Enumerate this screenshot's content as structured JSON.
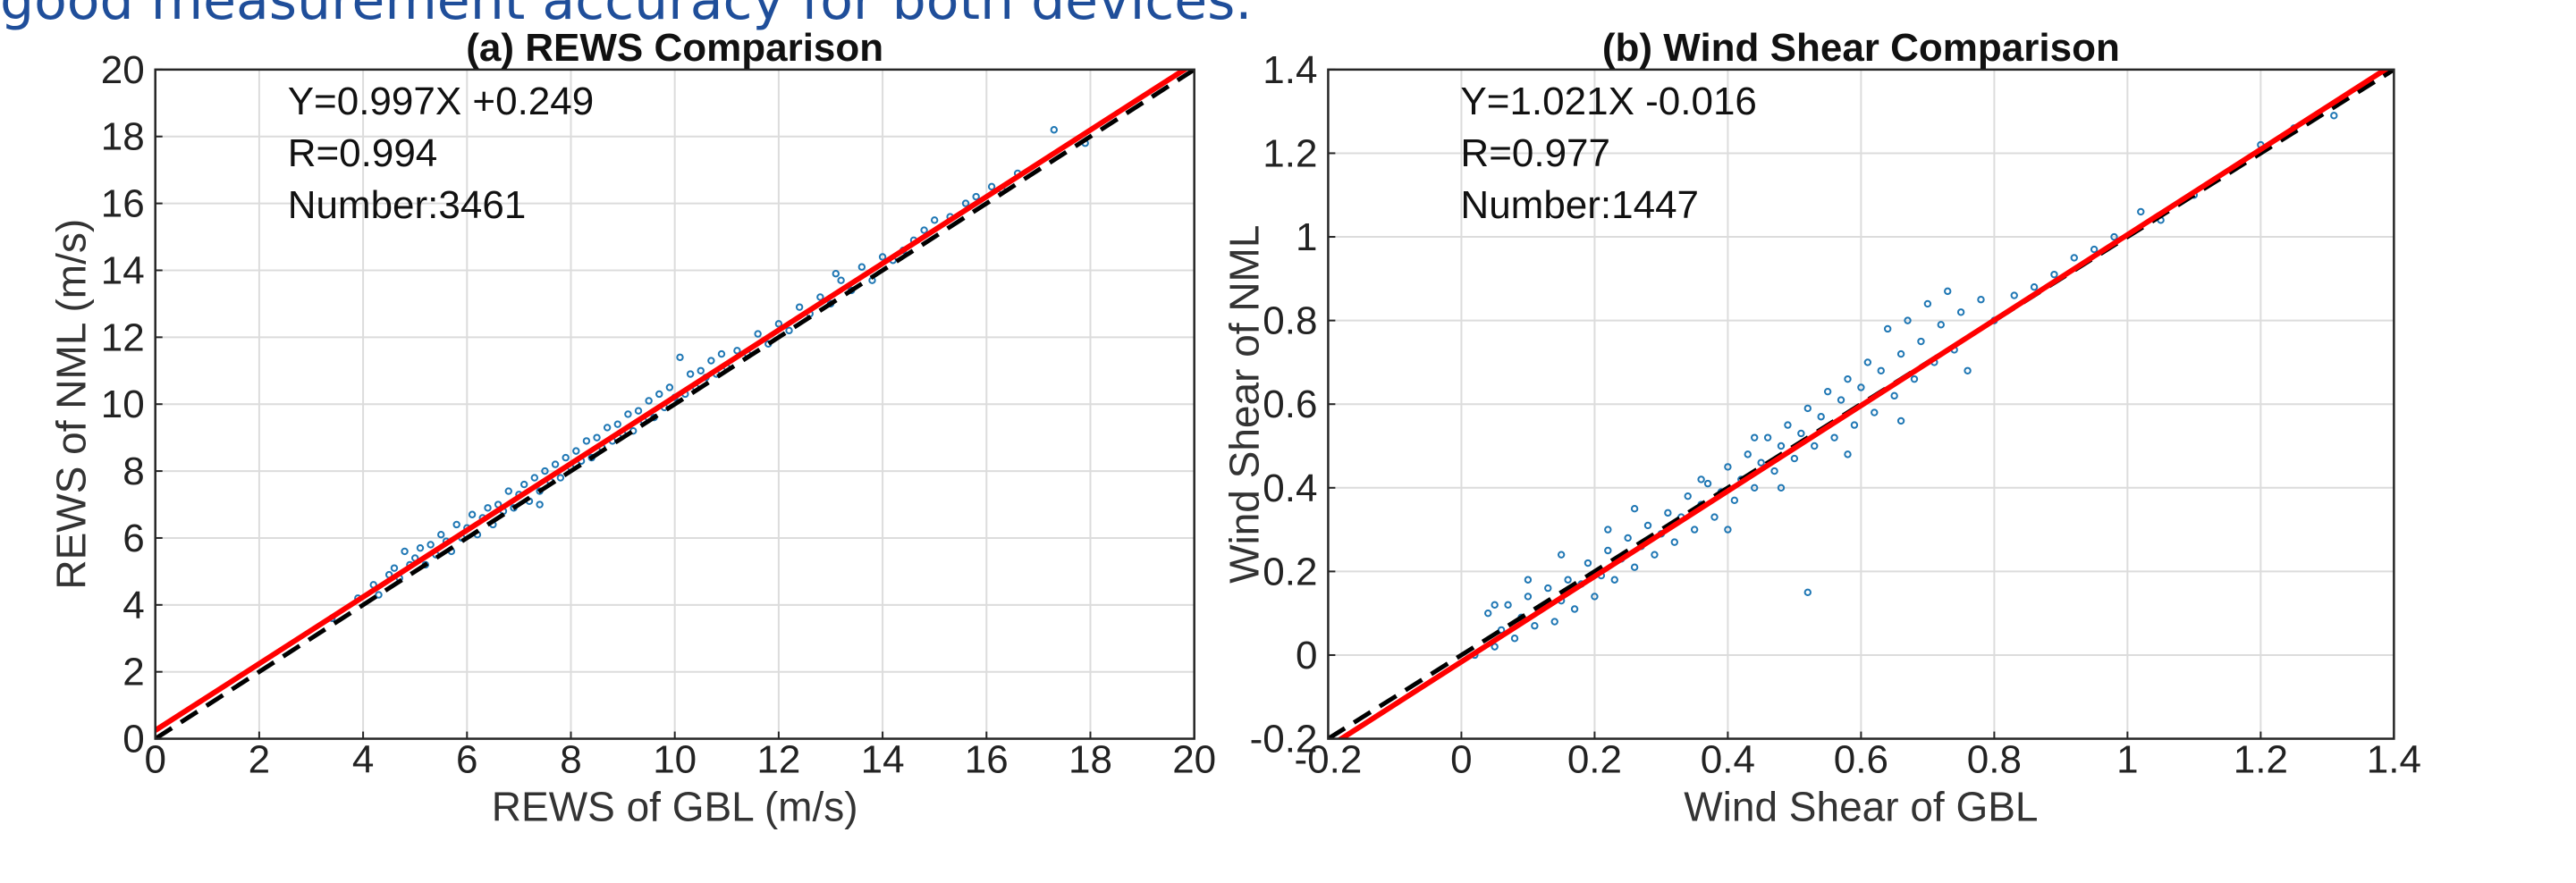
{
  "banner_text": "good measurement accuracy for both devices.",
  "colors": {
    "points": "#1f77b4",
    "fit": "#ff0000",
    "reference": "#000000",
    "banner": "#1f4e9a"
  },
  "chart_data": [
    {
      "type": "scatter",
      "title": "(a) REWS Comparison",
      "xlabel": "REWS of GBL (m/s)",
      "ylabel": "REWS of NML (m/s)",
      "xlim": [
        0,
        20
      ],
      "ylim": [
        0,
        20
      ],
      "xticks": [
        0,
        2,
        4,
        6,
        8,
        10,
        12,
        14,
        16,
        18,
        20
      ],
      "yticks": [
        0,
        2,
        4,
        6,
        8,
        10,
        12,
        14,
        16,
        18,
        20
      ],
      "xtick_labels": [
        "0",
        "2",
        "4",
        "6",
        "8",
        "10",
        "12",
        "14",
        "16",
        "18",
        "20"
      ],
      "ytick_labels": [
        "0",
        "2",
        "4",
        "6",
        "8",
        "10",
        "12",
        "14",
        "16",
        "18",
        "20"
      ],
      "grid": true,
      "annotations": [
        "Y=0.997X +0.249",
        "R=0.994",
        "Number:3461"
      ],
      "fit_line": {
        "slope": 0.997,
        "intercept": 0.249
      },
      "reference_line": {
        "slope": 1,
        "intercept": 0,
        "style": "dashed"
      },
      "series": [
        {
          "marker": "open-circle",
          "points": [
            [
              3.4,
              3.6
            ],
            [
              3.9,
              4.2
            ],
            [
              4.2,
              4.6
            ],
            [
              4.3,
              4.3
            ],
            [
              4.5,
              4.9
            ],
            [
              4.6,
              5.1
            ],
            [
              4.7,
              4.8
            ],
            [
              4.8,
              5.6
            ],
            [
              4.9,
              5.2
            ],
            [
              5.0,
              5.4
            ],
            [
              5.1,
              5.7
            ],
            [
              5.2,
              5.2
            ],
            [
              5.3,
              5.8
            ],
            [
              5.4,
              5.5
            ],
            [
              5.5,
              6.1
            ],
            [
              5.6,
              5.9
            ],
            [
              5.7,
              5.6
            ],
            [
              5.8,
              6.4
            ],
            [
              5.9,
              6.0
            ],
            [
              6.0,
              6.3
            ],
            [
              6.1,
              6.7
            ],
            [
              6.2,
              6.1
            ],
            [
              6.3,
              6.6
            ],
            [
              6.4,
              6.9
            ],
            [
              6.5,
              6.4
            ],
            [
              6.6,
              7.0
            ],
            [
              6.7,
              6.8
            ],
            [
              6.8,
              7.4
            ],
            [
              6.9,
              6.9
            ],
            [
              7.0,
              7.3
            ],
            [
              7.1,
              7.6
            ],
            [
              7.2,
              7.1
            ],
            [
              7.3,
              7.8
            ],
            [
              7.4,
              7.4
            ],
            [
              7.5,
              8.0
            ],
            [
              7.6,
              7.7
            ],
            [
              7.7,
              8.2
            ],
            [
              7.8,
              7.8
            ],
            [
              7.9,
              8.4
            ],
            [
              8.0,
              8.1
            ],
            [
              8.1,
              8.6
            ],
            [
              8.2,
              8.3
            ],
            [
              8.3,
              8.9
            ],
            [
              8.4,
              8.4
            ],
            [
              8.5,
              9.0
            ],
            [
              8.6,
              8.7
            ],
            [
              8.7,
              9.3
            ],
            [
              8.8,
              8.9
            ],
            [
              8.9,
              9.4
            ],
            [
              9.0,
              9.1
            ],
            [
              9.1,
              9.7
            ],
            [
              9.2,
              9.2
            ],
            [
              9.3,
              9.8
            ],
            [
              9.4,
              9.5
            ],
            [
              9.5,
              10.1
            ],
            [
              9.6,
              9.6
            ],
            [
              9.7,
              10.3
            ],
            [
              9.8,
              9.9
            ],
            [
              9.9,
              10.5
            ],
            [
              10.0,
              10.2
            ],
            [
              10.1,
              11.4
            ],
            [
              10.2,
              10.3
            ],
            [
              10.3,
              10.9
            ],
            [
              10.4,
              10.5
            ],
            [
              10.5,
              11.0
            ],
            [
              10.6,
              10.8
            ],
            [
              10.7,
              11.3
            ],
            [
              10.8,
              10.9
            ],
            [
              10.9,
              11.5
            ],
            [
              11.0,
              11.1
            ],
            [
              11.2,
              11.6
            ],
            [
              11.4,
              11.5
            ],
            [
              11.6,
              12.1
            ],
            [
              11.8,
              11.8
            ],
            [
              12.0,
              12.4
            ],
            [
              12.2,
              12.2
            ],
            [
              12.4,
              12.9
            ],
            [
              12.6,
              12.7
            ],
            [
              12.8,
              13.2
            ],
            [
              13.0,
              13.0
            ],
            [
              13.2,
              13.7
            ],
            [
              13.4,
              13.4
            ],
            [
              13.6,
              14.1
            ],
            [
              13.8,
              13.7
            ],
            [
              14.0,
              14.4
            ],
            [
              14.2,
              14.3
            ],
            [
              14.4,
              14.6
            ],
            [
              14.6,
              14.9
            ],
            [
              14.8,
              15.2
            ],
            [
              15.0,
              15.5
            ],
            [
              15.3,
              15.6
            ],
            [
              15.6,
              16.0
            ],
            [
              15.8,
              16.2
            ],
            [
              16.1,
              16.5
            ],
            [
              16.3,
              16.4
            ],
            [
              16.6,
              16.9
            ],
            [
              17.3,
              18.2
            ],
            [
              17.9,
              17.8
            ],
            [
              13.1,
              13.9
            ],
            [
              7.4,
              7.0
            ]
          ]
        }
      ]
    },
    {
      "type": "scatter",
      "title": "(b) Wind Shear Comparison",
      "xlabel": "Wind Shear of GBL",
      "ylabel": "Wind Shear of NML",
      "xlim": [
        -0.2,
        1.4
      ],
      "ylim": [
        -0.2,
        1.4
      ],
      "xticks": [
        -0.2,
        0,
        0.2,
        0.4,
        0.6,
        0.8,
        1,
        1.2,
        1.4
      ],
      "yticks": [
        -0.2,
        0,
        0.2,
        0.4,
        0.6,
        0.8,
        1,
        1.2,
        1.4
      ],
      "xtick_labels": [
        "-0.2",
        "0",
        "0.2",
        "0.4",
        "0.6",
        "0.8",
        "1",
        "1.2",
        "1.4"
      ],
      "ytick_labels": [
        "-0.2",
        "0",
        "0.2",
        "0.4",
        "0.6",
        "0.8",
        "1",
        "1.2",
        "1.4"
      ],
      "grid": true,
      "annotations": [
        "Y=1.021X -0.016",
        "R=0.977",
        "Number:1447"
      ],
      "fit_line": {
        "slope": 1.021,
        "intercept": -0.016
      },
      "reference_line": {
        "slope": 1,
        "intercept": 0,
        "style": "dashed"
      },
      "series": [
        {
          "marker": "open-circle",
          "points": [
            [
              0.02,
              0.0
            ],
            [
              0.04,
              0.1
            ],
            [
              0.05,
              0.02
            ],
            [
              0.06,
              0.06
            ],
            [
              0.07,
              0.12
            ],
            [
              0.08,
              0.04
            ],
            [
              0.09,
              0.09
            ],
            [
              0.1,
              0.14
            ],
            [
              0.11,
              0.07
            ],
            [
              0.12,
              0.11
            ],
            [
              0.13,
              0.16
            ],
            [
              0.14,
              0.08
            ],
            [
              0.15,
              0.13
            ],
            [
              0.16,
              0.18
            ],
            [
              0.17,
              0.11
            ],
            [
              0.18,
              0.17
            ],
            [
              0.19,
              0.22
            ],
            [
              0.2,
              0.14
            ],
            [
              0.21,
              0.19
            ],
            [
              0.22,
              0.25
            ],
            [
              0.23,
              0.18
            ],
            [
              0.24,
              0.23
            ],
            [
              0.25,
              0.28
            ],
            [
              0.26,
              0.21
            ],
            [
              0.27,
              0.26
            ],
            [
              0.28,
              0.31
            ],
            [
              0.29,
              0.24
            ],
            [
              0.3,
              0.29
            ],
            [
              0.31,
              0.34
            ],
            [
              0.32,
              0.27
            ],
            [
              0.33,
              0.33
            ],
            [
              0.34,
              0.38
            ],
            [
              0.35,
              0.3
            ],
            [
              0.36,
              0.36
            ],
            [
              0.37,
              0.41
            ],
            [
              0.38,
              0.33
            ],
            [
              0.39,
              0.39
            ],
            [
              0.4,
              0.45
            ],
            [
              0.41,
              0.37
            ],
            [
              0.42,
              0.42
            ],
            [
              0.43,
              0.48
            ],
            [
              0.44,
              0.4
            ],
            [
              0.45,
              0.46
            ],
            [
              0.46,
              0.52
            ],
            [
              0.47,
              0.44
            ],
            [
              0.48,
              0.5
            ],
            [
              0.49,
              0.55
            ],
            [
              0.5,
              0.47
            ],
            [
              0.51,
              0.53
            ],
            [
              0.52,
              0.59
            ],
            [
              0.52,
              0.15
            ],
            [
              0.53,
              0.5
            ],
            [
              0.54,
              0.57
            ],
            [
              0.55,
              0.63
            ],
            [
              0.56,
              0.52
            ],
            [
              0.57,
              0.61
            ],
            [
              0.58,
              0.66
            ],
            [
              0.59,
              0.55
            ],
            [
              0.6,
              0.64
            ],
            [
              0.61,
              0.7
            ],
            [
              0.62,
              0.58
            ],
            [
              0.63,
              0.68
            ],
            [
              0.64,
              0.78
            ],
            [
              0.65,
              0.62
            ],
            [
              0.66,
              0.72
            ],
            [
              0.67,
              0.8
            ],
            [
              0.68,
              0.66
            ],
            [
              0.69,
              0.75
            ],
            [
              0.7,
              0.84
            ],
            [
              0.71,
              0.7
            ],
            [
              0.72,
              0.79
            ],
            [
              0.73,
              0.87
            ],
            [
              0.74,
              0.73
            ],
            [
              0.75,
              0.82
            ],
            [
              0.76,
              0.68
            ],
            [
              0.78,
              0.85
            ],
            [
              0.8,
              0.8
            ],
            [
              0.83,
              0.86
            ],
            [
              0.86,
              0.88
            ],
            [
              0.89,
              0.91
            ],
            [
              0.92,
              0.95
            ],
            [
              0.95,
              0.97
            ],
            [
              0.98,
              1.0
            ],
            [
              1.02,
              1.06
            ],
            [
              1.05,
              1.04
            ],
            [
              1.1,
              1.1
            ],
            [
              1.2,
              1.22
            ],
            [
              1.25,
              1.26
            ],
            [
              1.31,
              1.29
            ],
            [
              0.36,
              0.42
            ],
            [
              0.44,
              0.52
            ],
            [
              0.26,
              0.35
            ],
            [
              0.15,
              0.24
            ],
            [
              0.1,
              0.18
            ],
            [
              0.05,
              0.12
            ],
            [
              0.4,
              0.3
            ],
            [
              0.48,
              0.4
            ],
            [
              0.58,
              0.48
            ],
            [
              0.66,
              0.56
            ],
            [
              0.22,
              0.3
            ]
          ]
        }
      ]
    }
  ]
}
